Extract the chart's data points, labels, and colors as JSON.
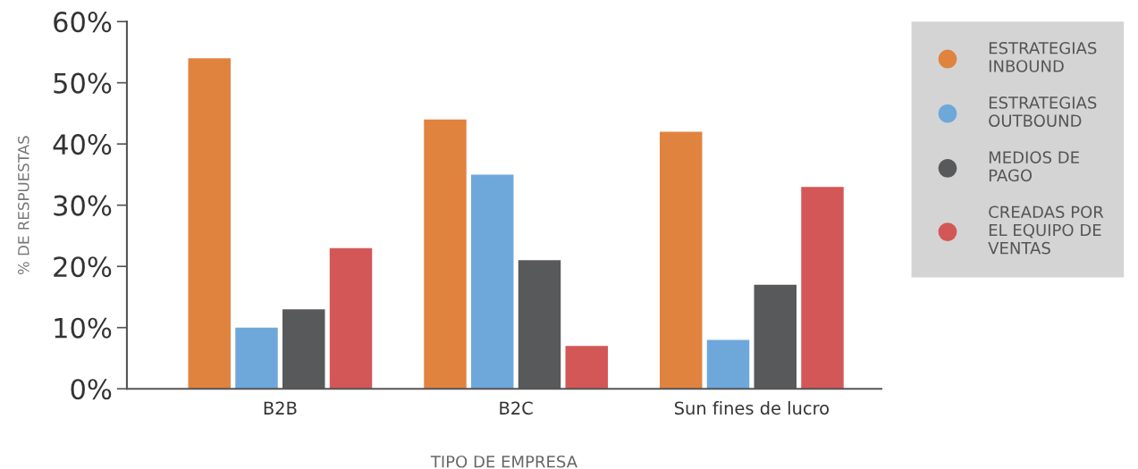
{
  "chart_data": {
    "type": "bar",
    "xlabel": "TIPO DE EMPRESA",
    "ylabel": "% DE RESPUESTAS",
    "categories": [
      "B2B",
      "B2C",
      "Sun fines de lucro"
    ],
    "series": [
      {
        "name": "ESTRATEGIAS\nINBOUND",
        "color": "#e0833f",
        "values": [
          54,
          44,
          42
        ]
      },
      {
        "name": "ESTRATEGIAS\nOUTBOUND",
        "color": "#6ea8db",
        "values": [
          10,
          35,
          8
        ]
      },
      {
        "name": "MEDIOS DE\nPAGO",
        "color": "#58595b",
        "values": [
          13,
          21,
          17
        ]
      },
      {
        "name": "CREADAS POR\nEL EQUIPO DE\nVENTAS",
        "color": "#d45757",
        "values": [
          23,
          7,
          33
        ]
      }
    ],
    "ylim": [
      0,
      60
    ],
    "yticks": [
      {
        "value": 0,
        "label": "0%"
      },
      {
        "value": 10,
        "label": "10%"
      },
      {
        "value": 20,
        "label": "20%"
      },
      {
        "value": 30,
        "label": "30%"
      },
      {
        "value": 40,
        "label": "40%"
      },
      {
        "value": 50,
        "label": "50%"
      },
      {
        "value": 60,
        "label": "60%"
      }
    ],
    "grid": false,
    "legend": "top right",
    "marker": "circle"
  }
}
